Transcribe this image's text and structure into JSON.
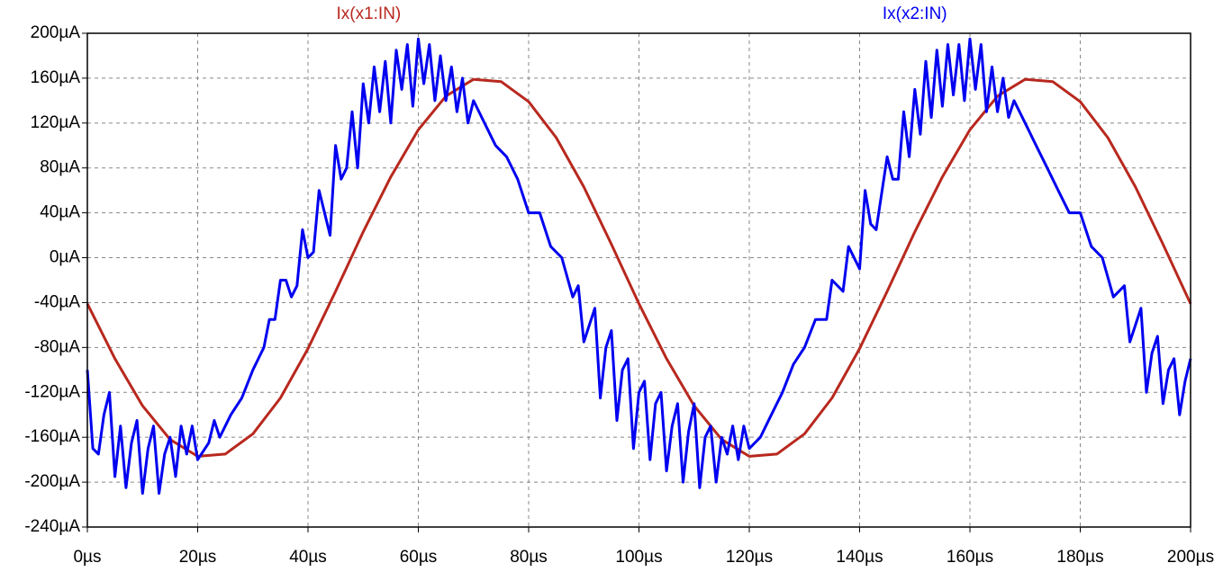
{
  "chart_data": {
    "type": "line",
    "grid": true,
    "xlim": [
      0,
      200
    ],
    "ylim": [
      -240,
      200
    ],
    "xticks": [
      {
        "value": 0,
        "label": "0µs"
      },
      {
        "value": 20,
        "label": "20µs"
      },
      {
        "value": 40,
        "label": "40µs"
      },
      {
        "value": 60,
        "label": "60µs"
      },
      {
        "value": 80,
        "label": "80µs"
      },
      {
        "value": 100,
        "label": "100µs"
      },
      {
        "value": 120,
        "label": "120µs"
      },
      {
        "value": 140,
        "label": "140µs"
      },
      {
        "value": 160,
        "label": "160µs"
      },
      {
        "value": 180,
        "label": "180µs"
      },
      {
        "value": 200,
        "label": "200µs"
      }
    ],
    "yticks": [
      {
        "value": 200,
        "label": "200µA"
      },
      {
        "value": 160,
        "label": "160µA"
      },
      {
        "value": 120,
        "label": "120µA"
      },
      {
        "value": 80,
        "label": "80µA"
      },
      {
        "value": 40,
        "label": "40µA"
      },
      {
        "value": 0,
        "label": "0µA"
      },
      {
        "value": -40,
        "label": "-40µA"
      },
      {
        "value": -80,
        "label": "-80µA"
      },
      {
        "value": -120,
        "label": "-120µA"
      },
      {
        "value": -160,
        "label": "-160µA"
      },
      {
        "value": -200,
        "label": "-200µA"
      },
      {
        "value": -240,
        "label": "-240µA"
      }
    ],
    "series": [
      {
        "name": "Ix(x1:IN)",
        "color": "#b8281e",
        "x": [
          0,
          5,
          10,
          15,
          20,
          25,
          30,
          35,
          40,
          45,
          50,
          55,
          60,
          65,
          70,
          75,
          80,
          85,
          90,
          95,
          100,
          105,
          110,
          115,
          120,
          125,
          130,
          135,
          140,
          145,
          150,
          155,
          160,
          165,
          170,
          175,
          180,
          185,
          190,
          195,
          200
        ],
        "values": [
          -41,
          -90,
          -132,
          -162,
          -177,
          -175,
          -157,
          -125,
          -81,
          -30,
          23,
          72,
          114,
          144,
          159,
          157,
          139,
          107,
          63,
          12,
          -41,
          -90,
          -132,
          -162,
          -177,
          -175,
          -157,
          -125,
          -81,
          -30,
          23,
          72,
          114,
          144,
          159,
          157,
          139,
          107,
          63,
          12,
          -41
        ]
      },
      {
        "name": "Ix(x2:IN)",
        "color": "#0000f0",
        "x": [
          0,
          1,
          2,
          3,
          4,
          5,
          6,
          7,
          8,
          9,
          10,
          11,
          12,
          13,
          14,
          15,
          16,
          17,
          18,
          19,
          20,
          22,
          23,
          24,
          26,
          28,
          30,
          32,
          33,
          34,
          35,
          36,
          37,
          38,
          39,
          40,
          41,
          42,
          43,
          44,
          45,
          46,
          47,
          48,
          49,
          50,
          51,
          52,
          53,
          54,
          55,
          56,
          57,
          58,
          59,
          60,
          61,
          62,
          63,
          64,
          65,
          66,
          67,
          68,
          69,
          70,
          72,
          74,
          76,
          78,
          80,
          82,
          84,
          86,
          88,
          89,
          90,
          91,
          92,
          93,
          94,
          95,
          96,
          97,
          98,
          99,
          100,
          101,
          102,
          103,
          104,
          105,
          106,
          107,
          108,
          109,
          110,
          111,
          112,
          113,
          114,
          115,
          116,
          117,
          118,
          119,
          120,
          122,
          124,
          126,
          128,
          130,
          132,
          134,
          135,
          137,
          138,
          140,
          141,
          142,
          143,
          145,
          146,
          147,
          148,
          149,
          150,
          151,
          152,
          153,
          154,
          155,
          156,
          157,
          158,
          159,
          160,
          161,
          162,
          163,
          164,
          165,
          166,
          167,
          168,
          170,
          172,
          174,
          176,
          178,
          180,
          182,
          184,
          186,
          188,
          189,
          190,
          191,
          192,
          193,
          194,
          195,
          196,
          197,
          198,
          199,
          200
        ],
        "values": [
          -100,
          -170,
          -175,
          -140,
          -120,
          -195,
          -150,
          -205,
          -165,
          -145,
          -210,
          -170,
          -150,
          -210,
          -175,
          -160,
          -195,
          -150,
          -175,
          -150,
          -180,
          -165,
          -145,
          -160,
          -140,
          -125,
          -100,
          -80,
          -55,
          -55,
          -20,
          -20,
          -35,
          -25,
          25,
          0,
          5,
          60,
          40,
          20,
          100,
          70,
          80,
          130,
          80,
          155,
          120,
          170,
          130,
          175,
          120,
          185,
          150,
          190,
          135,
          195,
          155,
          190,
          140,
          180,
          140,
          170,
          130,
          160,
          120,
          140,
          120,
          100,
          90,
          70,
          40,
          40,
          10,
          0,
          -35,
          -25,
          -75,
          -60,
          -45,
          -125,
          -80,
          -65,
          -145,
          -100,
          -90,
          -170,
          -120,
          -110,
          -180,
          -130,
          -120,
          -190,
          -150,
          -130,
          -200,
          -155,
          -130,
          -205,
          -160,
          -150,
          -200,
          -160,
          -175,
          -150,
          -180,
          -150,
          -170,
          -160,
          -140,
          -120,
          -95,
          -80,
          -55,
          -55,
          -20,
          -30,
          10,
          -10,
          60,
          30,
          25,
          90,
          70,
          70,
          130,
          90,
          150,
          110,
          175,
          125,
          185,
          135,
          190,
          145,
          190,
          140,
          195,
          150,
          190,
          130,
          170,
          130,
          160,
          125,
          140,
          120,
          100,
          80,
          60,
          40,
          40,
          10,
          0,
          -35,
          -25,
          -75,
          -60,
          -45,
          -120,
          -85,
          -70,
          -130,
          -100,
          -90,
          -140,
          -110,
          -90
        ]
      }
    ]
  }
}
